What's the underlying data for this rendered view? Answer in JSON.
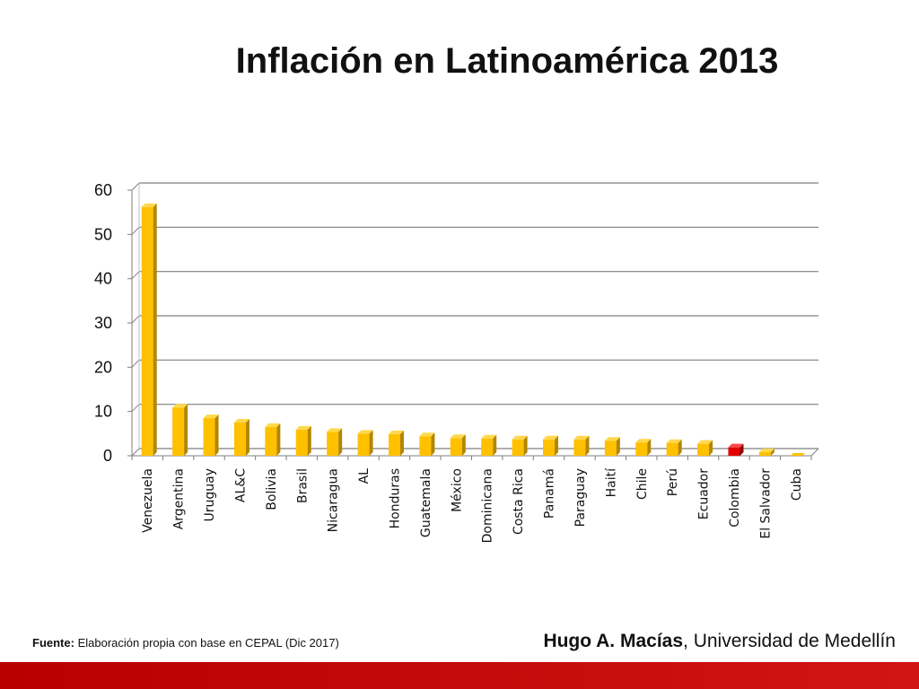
{
  "title": "Inflación en Latinoamérica 2013",
  "source": {
    "label": "Fuente:",
    "text": "Elaboración propia con base en CEPAL (Dic 2017)"
  },
  "author": {
    "name": "Hugo A. Macías",
    "affiliation": ", Universidad de Medellín"
  },
  "colors": {
    "bar": "#FFC000",
    "bar_side": "#B38600",
    "bar_top": "#FFD84D",
    "highlight": "#E00000",
    "highlight_side": "#8B0000",
    "highlight_top": "#FF4A4A",
    "grid": "#7F7F7F",
    "band": "#C00000"
  },
  "chart_data": {
    "type": "bar",
    "title": "Inflación en Latinoamérica 2013",
    "xlabel": "",
    "ylabel": "",
    "ylim": [
      0,
      60
    ],
    "yticks": [
      0,
      10,
      20,
      30,
      40,
      50,
      60
    ],
    "grid": true,
    "legend": "none",
    "highlight_category": "Colombia",
    "categories": [
      "Venezuela",
      "Argentina",
      "Uruguay",
      "AL&C",
      "Bolivia",
      "Brasil",
      "Nicaragua",
      "AL",
      "Honduras",
      "Guatemala",
      "México",
      "Dominicana",
      "Costa Rica",
      "Panamá",
      "Paraguay",
      "Haití",
      "Chile",
      "Perú",
      "Ecuador",
      "Colombia",
      "El Salvador",
      "Cuba"
    ],
    "values": [
      56.2,
      10.9,
      8.5,
      7.5,
      6.5,
      5.9,
      5.4,
      5.0,
      4.9,
      4.4,
      4.0,
      3.9,
      3.7,
      3.7,
      3.7,
      3.4,
      3.0,
      2.9,
      2.7,
      1.9,
      0.8,
      0.0
    ]
  }
}
